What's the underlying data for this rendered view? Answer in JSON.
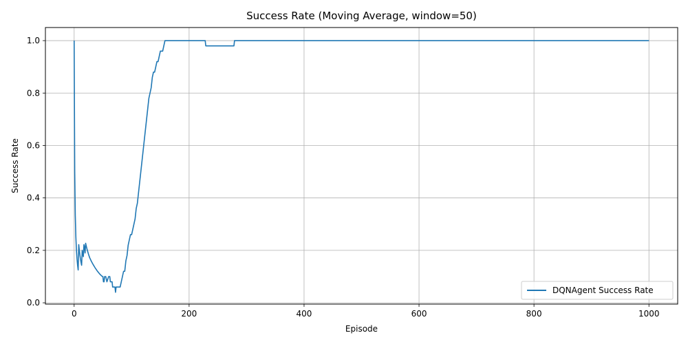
{
  "chart_data": {
    "type": "line",
    "title": "Success Rate (Moving Average, window=50)",
    "xlabel": "Episode",
    "ylabel": "Success Rate",
    "xlim": [
      -50,
      1050
    ],
    "ylim": [
      -0.005,
      1.05
    ],
    "xticks": [
      0,
      200,
      400,
      600,
      800,
      1000
    ],
    "xtick_labels": [
      "0",
      "200",
      "400",
      "600",
      "800",
      "1000"
    ],
    "yticks": [
      0.0,
      0.2,
      0.4,
      0.6,
      0.8,
      1.0
    ],
    "ytick_labels": [
      "0.0",
      "0.2",
      "0.4",
      "0.6",
      "0.8",
      "1.0"
    ],
    "grid": true,
    "legend_position": "lower-right",
    "colors": {
      "series": "#1f77b4",
      "grid": "#b0b0b0",
      "axis": "#000000"
    },
    "series": [
      {
        "name": "DQNAgent Success Rate",
        "x": [
          0,
          1,
          2,
          3,
          4,
          5,
          6,
          7,
          8,
          9,
          10,
          11,
          12,
          13,
          14,
          15,
          16,
          17,
          18,
          19,
          20,
          21,
          22,
          23,
          25,
          27,
          30,
          33,
          36,
          40,
          44,
          48,
          50,
          51,
          52,
          53,
          54,
          55,
          57,
          60,
          62,
          63,
          64,
          66,
          67,
          68,
          70,
          71,
          72,
          73,
          80,
          82,
          84,
          86,
          88,
          90,
          92,
          94,
          96,
          98,
          100,
          102,
          104,
          106,
          108,
          110,
          112,
          114,
          116,
          118,
          120,
          122,
          124,
          126,
          128,
          130,
          132,
          134,
          136,
          138,
          140,
          142,
          144,
          146,
          148,
          150,
          152,
          154,
          156,
          158,
          160,
          200,
          228,
          229,
          278,
          279,
          1000
        ],
        "y": [
          1.0,
          0.5,
          0.333,
          0.25,
          0.2,
          0.167,
          0.143,
          0.125,
          0.222,
          0.2,
          0.182,
          0.167,
          0.154,
          0.143,
          0.2,
          0.188,
          0.176,
          0.222,
          0.211,
          0.19,
          0.227,
          0.217,
          0.208,
          0.2,
          0.185,
          0.172,
          0.158,
          0.146,
          0.135,
          0.122,
          0.111,
          0.102,
          0.1,
          0.08,
          0.08,
          0.1,
          0.1,
          0.1,
          0.08,
          0.1,
          0.1,
          0.08,
          0.08,
          0.08,
          0.06,
          0.06,
          0.06,
          0.06,
          0.04,
          0.06,
          0.06,
          0.08,
          0.1,
          0.12,
          0.12,
          0.16,
          0.18,
          0.22,
          0.24,
          0.26,
          0.26,
          0.28,
          0.3,
          0.32,
          0.36,
          0.38,
          0.42,
          0.46,
          0.5,
          0.54,
          0.58,
          0.62,
          0.66,
          0.7,
          0.74,
          0.78,
          0.8,
          0.82,
          0.86,
          0.88,
          0.88,
          0.9,
          0.92,
          0.92,
          0.94,
          0.96,
          0.96,
          0.96,
          0.98,
          1.0,
          1.0,
          1.0,
          1.0,
          0.98,
          0.98,
          1.0,
          1.0
        ]
      }
    ]
  }
}
